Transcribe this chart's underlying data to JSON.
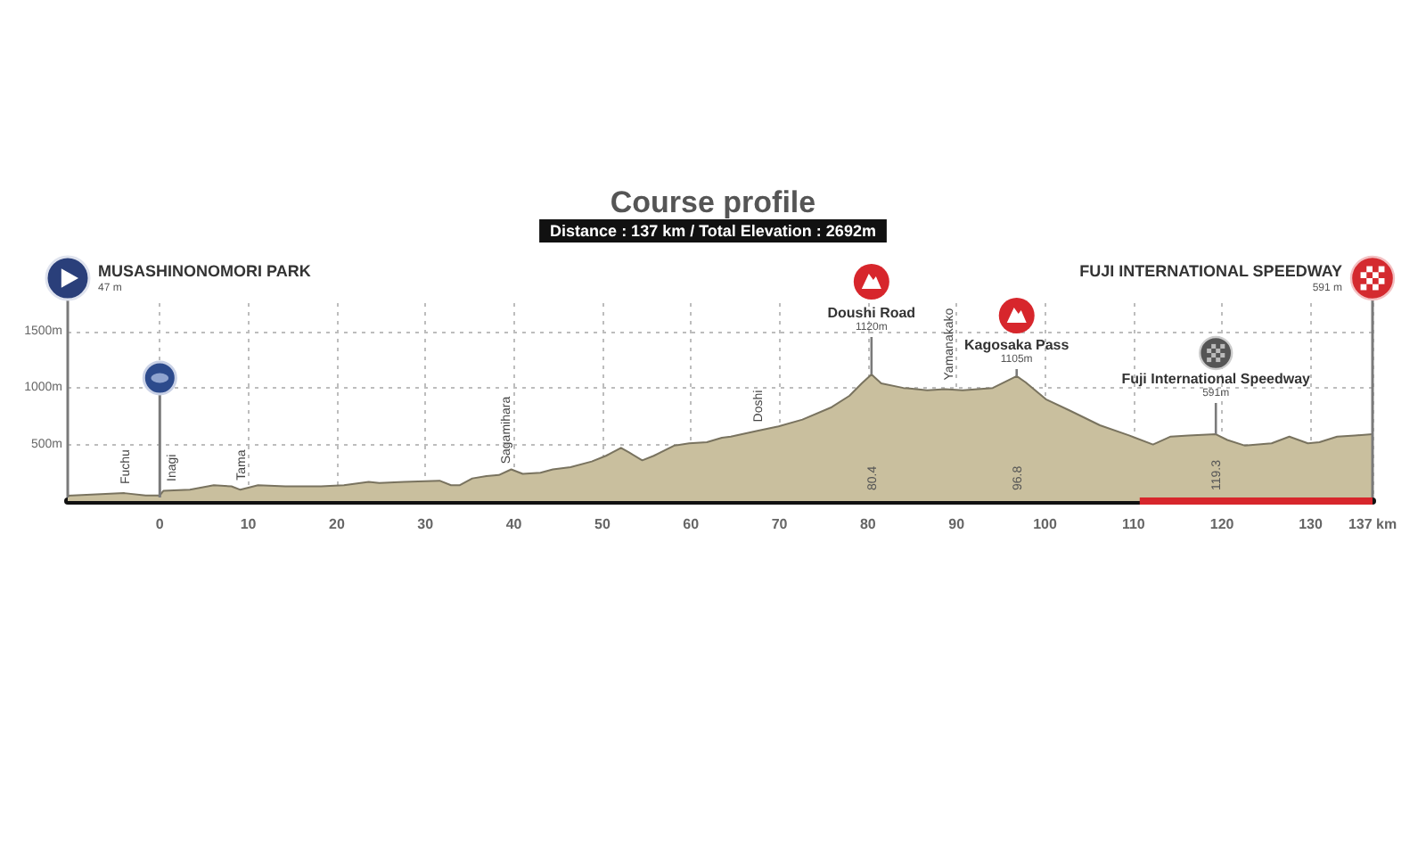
{
  "chart_data": {
    "type": "area",
    "title": "Course profile",
    "subtitle": "Distance : 137 km / Total Elevation : 2692m",
    "series": [
      {
        "color": "#c9bf9e",
        "x": [
          -10.4,
          -4.0,
          -1.6,
          0,
          0.4,
          3.4,
          6.1,
          8.1,
          9.1,
          11.1,
          14.2,
          18.2,
          20.8,
          23.6,
          24.8,
          27.6,
          31.6,
          32.9,
          33.9,
          35.3,
          36.9,
          38.3,
          39.7,
          41.0,
          43.0,
          44.4,
          46.4,
          48.8,
          50.4,
          52.1,
          53.0,
          54.5,
          55.8,
          58.1,
          59.8,
          61.8,
          63.5,
          64.5,
          67.5,
          69.9,
          72.6,
          75.9,
          77.9,
          79.3,
          80.4,
          81.5,
          84.0,
          86.7,
          88.7,
          90.7,
          94.1,
          96.8,
          97.8,
          100.1,
          102.8,
          106.2,
          109.5,
          112.2,
          114.2,
          116.2,
          119.3,
          120.6,
          122.6,
          125.6,
          127.6,
          129.7,
          131.0,
          133.0,
          135.0,
          137
        ],
        "values": [
          47,
          70,
          50,
          50,
          90,
          100,
          140,
          130,
          100,
          140,
          130,
          130,
          140,
          170,
          160,
          170,
          180,
          140,
          140,
          200,
          220,
          230,
          280,
          240,
          250,
          280,
          300,
          350,
          400,
          470,
          430,
          360,
          400,
          490,
          510,
          520,
          560,
          570,
          620,
          660,
          720,
          830,
          930,
          1040,
          1120,
          1040,
          1000,
          980,
          990,
          980,
          1000,
          1105,
          1050,
          900,
          800,
          670,
          580,
          500,
          570,
          580,
          591,
          540,
          490,
          510,
          570,
          510,
          520,
          570,
          580,
          591
        ]
      },
      {
        "type": "line",
        "color": "#d7262c",
        "x": [
          110.7,
          137
        ],
        "values": [
          0,
          0
        ]
      }
    ],
    "marker": "none",
    "grid": true,
    "xlim": [
      -10.4,
      137
    ],
    "xticks": [
      0,
      10,
      20,
      30,
      40,
      50,
      60,
      70,
      80,
      90,
      100,
      110,
      120,
      130,
      {
        "value": 137,
        "label": "137 km"
      }
    ],
    "ylim": [
      0,
      1750
    ],
    "yticks": [
      {
        "value": 500,
        "label": "500m"
      },
      {
        "value": 1000,
        "label": "1000m"
      },
      {
        "value": 1500,
        "label": "1500m"
      }
    ],
    "annotations": [
      "MUSASHINONOMORI PARK",
      "47 m",
      {
        "text": "Fuchu",
        "x": -4.0,
        "y": 70
      },
      {
        "text": "Inagi",
        "x": 1.3,
        "y": 95
      },
      {
        "text": "Tama",
        "x": 9.1,
        "y": 105
      },
      {
        "text": "Sagamihara",
        "x": 39,
        "y": 250
      },
      {
        "text": "Doshi",
        "x": 67.5,
        "y": 620
      },
      {
        "text": "Doushi Road",
        "x": 80.4,
        "y": 1120
      },
      {
        "text": "1120m",
        "x": 80.4,
        "y": 1120
      },
      {
        "text": "80.4",
        "x": 80.4,
        "y": 0
      },
      {
        "text": "Yamanakako",
        "x": 89.1,
        "y": 990
      },
      {
        "text": "Kagosaka Pass",
        "x": 96.8,
        "y": 1105
      },
      {
        "text": "1105m",
        "x": 96.8,
        "y": 1105
      },
      {
        "text": "96.8",
        "x": 96.8,
        "y": 0
      },
      {
        "text": "Fuji International Speedway",
        "x": 119.3,
        "y": 591
      },
      {
        "text": "591m",
        "x": 119.3,
        "y": 591
      },
      {
        "text": "119.3",
        "x": 119.3,
        "y": 0
      },
      "FUJI INTERNATIONAL SPEEDWAY",
      "591 m"
    ]
  }
}
